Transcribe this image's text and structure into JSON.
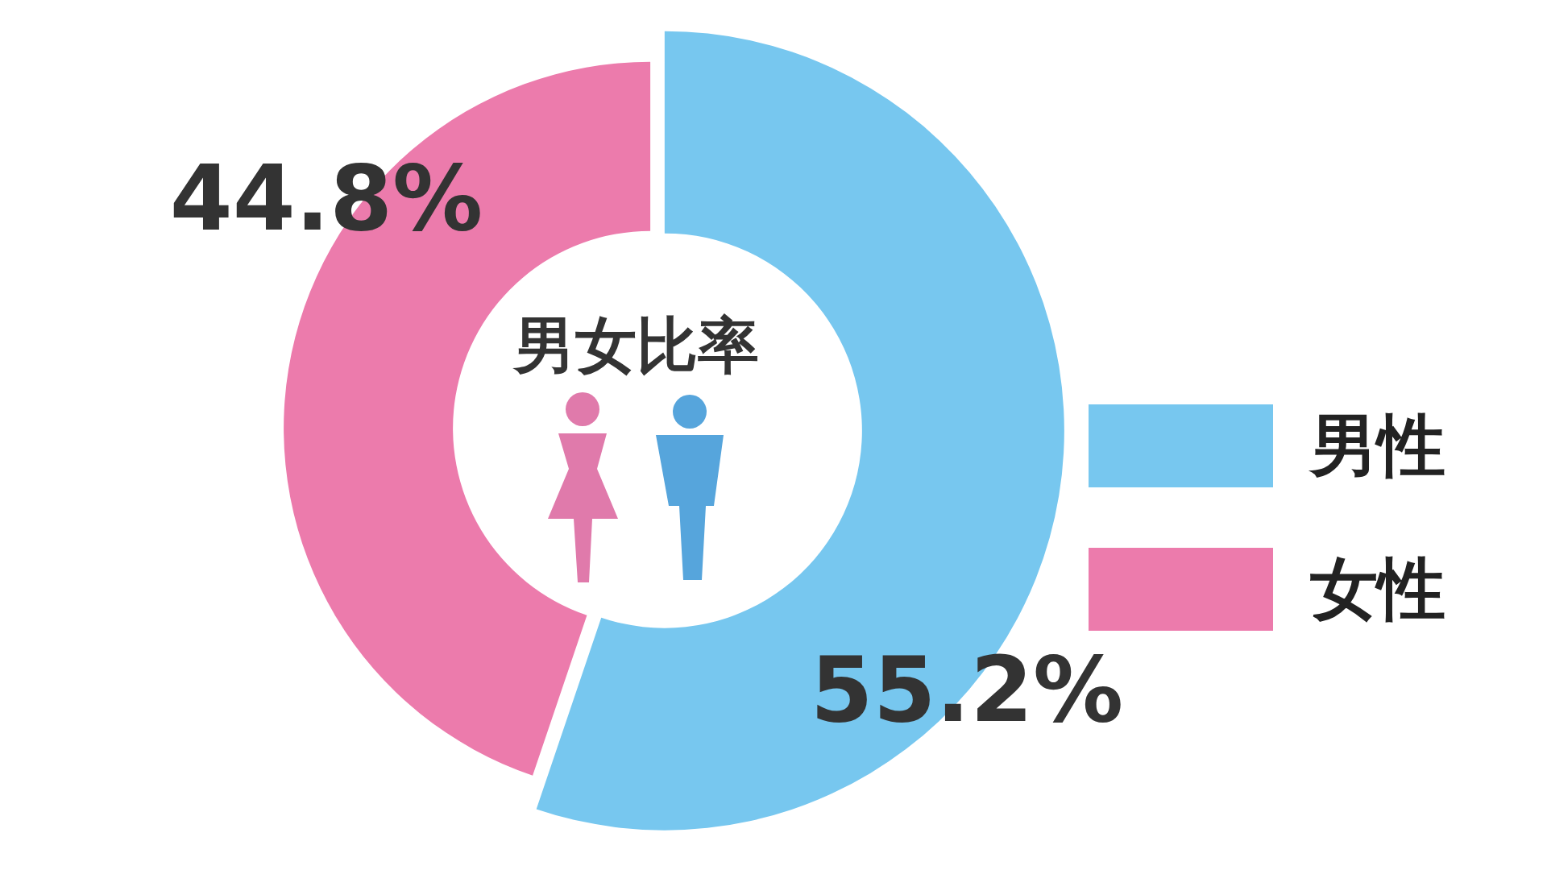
{
  "chart_data": {
    "type": "donut",
    "title": "男女比率",
    "categories": [
      "男性",
      "女性"
    ],
    "values": [
      55.2,
      44.8
    ],
    "colors": [
      "#77c7ef",
      "#ec7bac"
    ],
    "value_labels": [
      "55.2%",
      "44.8%"
    ],
    "legend": "right"
  }
}
